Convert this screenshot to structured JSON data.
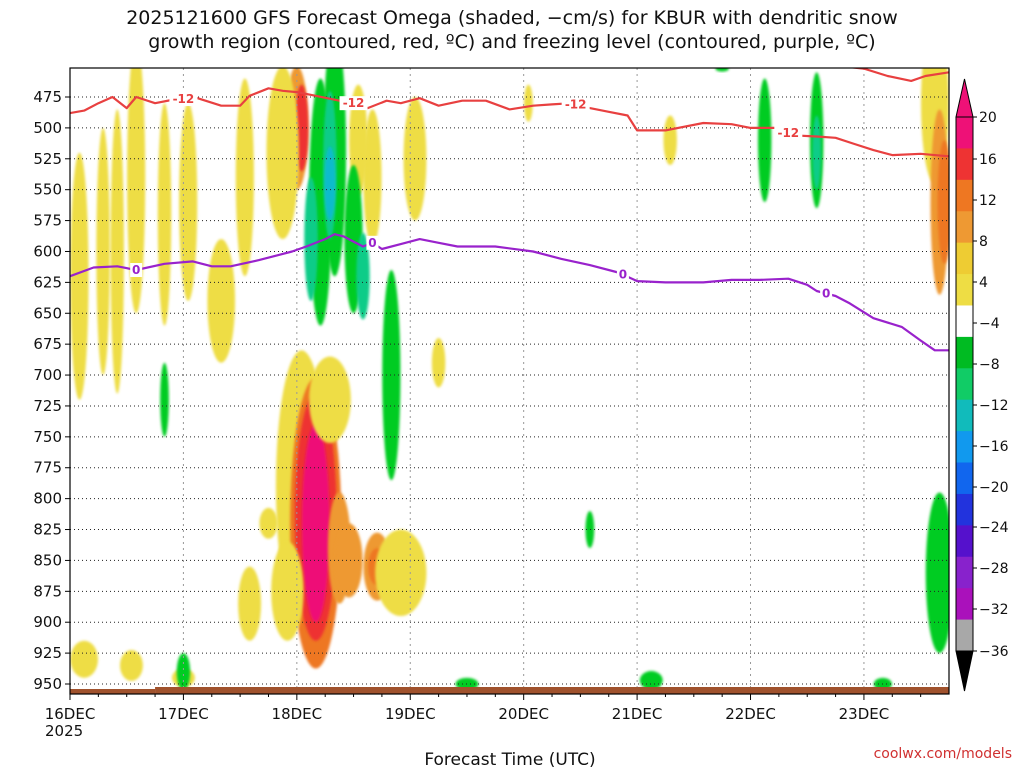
{
  "header": {
    "title_line1": "2025121600 GFS Forecast Omega (shaded, −cm/s) for KBUR with dendritic snow",
    "title_line2": "growth region (contoured, red, ºC) and freezing level (contoured, purple, ºC)"
  },
  "footer": {
    "credit": "coolwx.com/models"
  },
  "chart_data": {
    "type": "heatmap",
    "title": "2025121600 GFS Forecast Omega (shaded, −cm/s) for KBUR with dendritic snow growth region (contoured, red, ºC) and freezing level (contoured, purple, ºC)",
    "xlabel": "Forecast Time (UTC)",
    "ylabel": "",
    "x_ticks": [
      "16DEC",
      "17DEC",
      "18DEC",
      "19DEC",
      "20DEC",
      "21DEC",
      "22DEC",
      "23DEC"
    ],
    "x_year_label": "2025",
    "xlim_hours": [
      0,
      186
    ],
    "y_ticks": [
      475,
      500,
      525,
      550,
      575,
      600,
      625,
      650,
      675,
      700,
      725,
      750,
      775,
      800,
      825,
      850,
      875,
      900,
      925,
      950
    ],
    "ylim": [
      950,
      450
    ],
    "grid": true,
    "colorbar": {
      "labels": [
        "20",
        "16",
        "12",
        "8",
        "4",
        "−4",
        "−8",
        "−12",
        "−16",
        "−20",
        "−24",
        "−28",
        "−32",
        "−36"
      ],
      "colors": [
        "#ee1177",
        "#ee3333",
        "#ee7722",
        "#ee9933",
        "#eecc33",
        "#eedd44",
        "#ffffff",
        "#00bb22",
        "#11cc66",
        "#11bbbb",
        "#1199ee",
        "#1166ee",
        "#2233dd",
        "#5511cc",
        "#8822cc",
        "#aa11bb",
        "#a8a8a8"
      ],
      "top_color": "#ee1177",
      "bottom_color": "#000000"
    },
    "series": [
      {
        "name": "-12 C isotherm (dendritic growth region)",
        "color": "#e84040",
        "label": "-12",
        "label_at_hours": [
          24,
          60,
          107,
          152
        ],
        "points": [
          [
            0,
            488
          ],
          [
            3,
            486
          ],
          [
            6,
            480
          ],
          [
            9,
            475
          ],
          [
            12,
            484
          ],
          [
            14,
            475
          ],
          [
            18,
            480
          ],
          [
            22,
            477
          ],
          [
            27,
            476
          ],
          [
            32,
            482
          ],
          [
            36,
            482
          ],
          [
            38,
            474
          ],
          [
            42,
            468
          ],
          [
            45,
            470
          ],
          [
            48,
            471
          ],
          [
            52,
            474
          ],
          [
            57,
            478
          ],
          [
            60,
            480
          ],
          [
            63,
            484
          ],
          [
            67,
            478
          ],
          [
            70,
            480
          ],
          [
            74,
            476
          ],
          [
            78,
            482
          ],
          [
            83,
            478
          ],
          [
            88,
            478
          ],
          [
            93,
            485
          ],
          [
            98,
            482
          ],
          [
            102,
            481
          ],
          [
            106,
            480
          ],
          [
            110,
            484
          ],
          [
            114,
            487
          ],
          [
            118,
            490
          ],
          [
            120,
            502
          ],
          [
            126,
            502
          ],
          [
            134,
            496
          ],
          [
            140,
            497
          ],
          [
            144,
            500
          ],
          [
            150,
            500
          ],
          [
            153,
            506
          ],
          [
            158,
            507
          ],
          [
            162,
            508
          ],
          [
            166,
            513
          ],
          [
            170,
            518
          ],
          [
            174,
            522
          ],
          [
            180,
            521
          ],
          [
            186,
            523
          ]
        ]
      },
      {
        "name": "0 C freezing level",
        "color": "#9922cc",
        "label": "0",
        "label_at_hours": [
          14,
          64,
          117,
          160
        ],
        "points": [
          [
            0,
            620
          ],
          [
            5,
            613
          ],
          [
            10,
            612
          ],
          [
            14,
            615
          ],
          [
            20,
            610
          ],
          [
            26,
            608
          ],
          [
            30,
            612
          ],
          [
            34,
            612
          ],
          [
            40,
            607
          ],
          [
            44,
            603
          ],
          [
            47,
            600
          ],
          [
            50,
            596
          ],
          [
            54,
            590
          ],
          [
            56,
            586
          ],
          [
            58,
            588
          ],
          [
            60,
            592
          ],
          [
            62,
            596
          ],
          [
            64,
            593
          ],
          [
            66,
            598
          ],
          [
            70,
            594
          ],
          [
            74,
            590
          ],
          [
            78,
            593
          ],
          [
            82,
            596
          ],
          [
            86,
            596
          ],
          [
            90,
            596
          ],
          [
            98,
            600
          ],
          [
            104,
            606
          ],
          [
            110,
            611
          ],
          [
            116,
            617
          ],
          [
            120,
            624
          ],
          [
            126,
            625
          ],
          [
            134,
            625
          ],
          [
            140,
            623
          ],
          [
            146,
            623
          ],
          [
            152,
            622
          ],
          [
            156,
            627
          ],
          [
            158,
            632
          ],
          [
            162,
            636
          ],
          [
            165,
            642
          ],
          [
            170,
            654
          ],
          [
            176,
            661
          ],
          [
            180,
            672
          ],
          [
            183,
            680
          ],
          [
            186,
            680
          ]
        ]
      },
      {
        "name": "-12 C isotherm (upper right)",
        "color": "#e84040",
        "label": "",
        "label_at_hours": [],
        "points": [
          [
            163,
            450
          ],
          [
            168,
            452
          ],
          [
            173,
            458
          ],
          [
            178,
            462
          ],
          [
            181,
            458
          ],
          [
            186,
            455
          ]
        ]
      }
    ],
    "omega_cells": [
      {
        "t": 50,
        "p": 805,
        "dt": 5,
        "dp": 195,
        "value": 10
      },
      {
        "t": 49,
        "p": 790,
        "dt": 10,
        "dp": 220,
        "value": 6
      },
      {
        "t": 52,
        "p": 820,
        "dt": 10,
        "dp": 235,
        "value": 15
      },
      {
        "t": 52,
        "p": 815,
        "dt": 8,
        "dp": 200,
        "value": 18
      },
      {
        "t": 52,
        "p": 820,
        "dt": 5,
        "dp": 160,
        "value": 21
      },
      {
        "t": 57,
        "p": 840,
        "dt": 4,
        "dp": 90,
        "value": 11
      },
      {
        "t": 59,
        "p": 850,
        "dt": 5,
        "dp": 60,
        "value": 10
      },
      {
        "t": 65,
        "p": 855,
        "dt": 5,
        "dp": 55,
        "value": 9
      },
      {
        "t": 65,
        "p": 855,
        "dt": 3,
        "dp": 30,
        "value": 14
      },
      {
        "t": 46,
        "p": 875,
        "dt": 6,
        "dp": 80,
        "value": 6
      },
      {
        "t": 38,
        "p": 885,
        "dt": 4,
        "dp": 60,
        "value": 5
      },
      {
        "t": 70,
        "p": 860,
        "dt": 10,
        "dp": 70,
        "value": 6
      },
      {
        "t": 55,
        "p": 720,
        "dt": 8,
        "dp": 70,
        "value": 6
      },
      {
        "t": 48,
        "p": 500,
        "dt": 4,
        "dp": 100,
        "value": 10
      },
      {
        "t": 49,
        "p": 500,
        "dt": 2,
        "dp": 70,
        "value": 16
      },
      {
        "t": 45,
        "p": 520,
        "dt": 6,
        "dp": 140,
        "value": 6
      },
      {
        "t": 2,
        "p": 620,
        "dt": 3,
        "dp": 200,
        "value": 5
      },
      {
        "t": 7,
        "p": 600,
        "dt": 2,
        "dp": 200,
        "value": 5
      },
      {
        "t": 10,
        "p": 600,
        "dt": 2,
        "dp": 230,
        "value": 6
      },
      {
        "t": 14,
        "p": 540,
        "dt": 3,
        "dp": 220,
        "value": 5
      },
      {
        "t": 20,
        "p": 570,
        "dt": 2,
        "dp": 180,
        "value": 5
      },
      {
        "t": 25,
        "p": 560,
        "dt": 3,
        "dp": 160,
        "value": 5
      },
      {
        "t": 32,
        "p": 640,
        "dt": 5,
        "dp": 100,
        "value": 5
      },
      {
        "t": 37,
        "p": 540,
        "dt": 3,
        "dp": 160,
        "value": 5
      },
      {
        "t": 64,
        "p": 540,
        "dt": 3,
        "dp": 110,
        "value": 5
      },
      {
        "t": 73,
        "p": 525,
        "dt": 4,
        "dp": 100,
        "value": 6
      },
      {
        "t": 61,
        "p": 510,
        "dt": 3,
        "dp": 90,
        "value": 5
      },
      {
        "t": 78,
        "p": 690,
        "dt": 2,
        "dp": 40,
        "value": 5
      },
      {
        "t": 97,
        "p": 480,
        "dt": 1,
        "dp": 30,
        "value": 5
      },
      {
        "t": 127,
        "p": 510,
        "dt": 2,
        "dp": 40,
        "value": 5
      },
      {
        "t": 3,
        "p": 930,
        "dt": 5,
        "dp": 30,
        "value": 5
      },
      {
        "t": 13,
        "p": 935,
        "dt": 4,
        "dp": 25,
        "value": 5
      },
      {
        "t": 24,
        "p": 945,
        "dt": 4,
        "dp": 15,
        "value": 5
      },
      {
        "t": 183,
        "p": 480,
        "dt": 5,
        "dp": 130,
        "value": 6
      },
      {
        "t": 184,
        "p": 560,
        "dt": 3,
        "dp": 150,
        "value": 9
      },
      {
        "t": 185,
        "p": 560,
        "dt": 2,
        "dp": 100,
        "value": 12
      },
      {
        "t": 53,
        "p": 560,
        "dt": 4,
        "dp": 200,
        "value": -6
      },
      {
        "t": 56,
        "p": 520,
        "dt": 4,
        "dp": 200,
        "value": -7
      },
      {
        "t": 55,
        "p": 530,
        "dt": 2,
        "dp": 120,
        "value": -11
      },
      {
        "t": 55,
        "p": 545,
        "dt": 1.5,
        "dp": 60,
        "value": -15
      },
      {
        "t": 51,
        "p": 590,
        "dt": 2,
        "dp": 100,
        "value": -10
      },
      {
        "t": 60,
        "p": 590,
        "dt": 3,
        "dp": 120,
        "value": -5
      },
      {
        "t": 62,
        "p": 620,
        "dt": 2,
        "dp": 70,
        "value": -10
      },
      {
        "t": 68,
        "p": 700,
        "dt": 3,
        "dp": 170,
        "value": -5
      },
      {
        "t": 24,
        "p": 940,
        "dt": 2,
        "dp": 30,
        "value": -6
      },
      {
        "t": 110,
        "p": 825,
        "dt": 1,
        "dp": 30,
        "value": -6
      },
      {
        "t": 84,
        "p": 950,
        "dt": 4,
        "dp": 10,
        "value": -5
      },
      {
        "t": 123,
        "p": 947,
        "dt": 4,
        "dp": 15,
        "value": -5
      },
      {
        "t": 147,
        "p": 510,
        "dt": 2,
        "dp": 100,
        "value": -6
      },
      {
        "t": 158,
        "p": 510,
        "dt": 2,
        "dp": 110,
        "value": -7
      },
      {
        "t": 158,
        "p": 520,
        "dt": 1,
        "dp": 60,
        "value": -11
      },
      {
        "t": 172,
        "p": 950,
        "dt": 3,
        "dp": 10,
        "value": -5
      },
      {
        "t": 184,
        "p": 860,
        "dt": 5,
        "dp": 130,
        "value": -7
      },
      {
        "t": 138,
        "p": 452,
        "dt": 2,
        "dp": 5,
        "value": -5
      },
      {
        "t": 42,
        "p": 820,
        "dt": 3,
        "dp": 25,
        "value": 5
      },
      {
        "t": 20,
        "p": 720,
        "dt": 1,
        "dp": 60,
        "value": -5
      },
      {
        "t": 125,
        "p": 400,
        "dt": 1,
        "dp": 1,
        "value": 0
      }
    ]
  }
}
